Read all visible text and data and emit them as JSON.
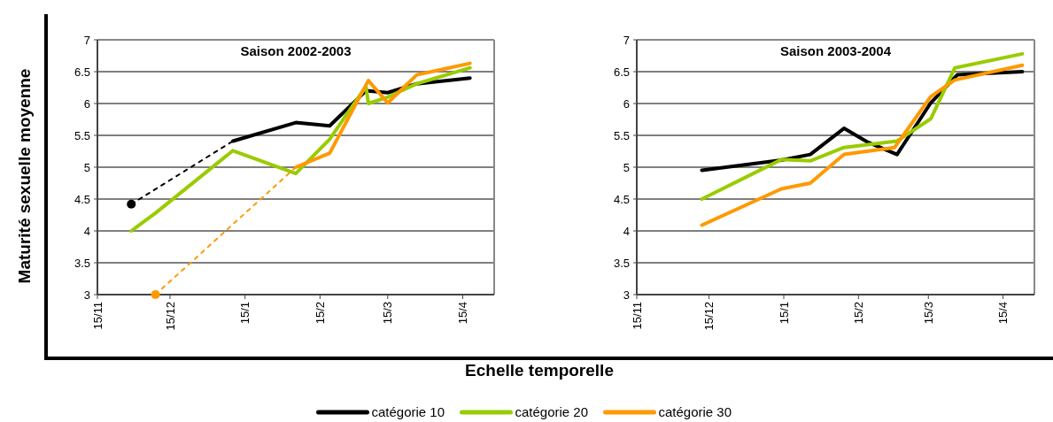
{
  "chart_data": [
    {
      "type": "line",
      "title": "Saison 2002-2003",
      "ylabel": "Maturité sexuelle moyenne",
      "xlabel": "Echelle temporelle",
      "xlim": [
        "2002-11-15",
        "2003-04-28"
      ],
      "xticks": [
        {
          "value": "2002-11-15",
          "label": "15/11"
        },
        {
          "value": "2002-12-15",
          "label": "15/12"
        },
        {
          "value": "2003-01-15",
          "label": "15/1"
        },
        {
          "value": "2003-02-15",
          "label": "15/2"
        },
        {
          "value": "2003-03-15",
          "label": "15/3"
        },
        {
          "value": "2003-04-15",
          "label": "15/4"
        }
      ],
      "ylim": [
        3,
        7
      ],
      "yticks": [
        3,
        3.5,
        4,
        4.5,
        5,
        5.5,
        6,
        6.5,
        7
      ],
      "grid": "y",
      "legend": "bottom",
      "line_style": "solid",
      "marker": "none",
      "series": [
        {
          "name": "catégorie 10",
          "color": "#000000",
          "x": [
            "2003-01-10",
            "2003-02-05",
            "2003-02-19",
            "2003-03-06",
            "2003-03-15",
            "2003-03-27",
            "2003-04-18"
          ],
          "values": [
            5.41,
            5.7,
            5.65,
            6.2,
            6.17,
            6.31,
            6.4
          ]
        },
        {
          "name": "catégorie 20",
          "color": "#99cc00",
          "x": [
            "2002-11-29",
            "2002-12-09",
            "2003-01-10",
            "2003-02-05",
            "2003-02-19",
            "2003-03-06",
            "2003-03-07",
            "2003-03-15",
            "2003-03-27",
            "2003-04-18"
          ],
          "values": [
            4.0,
            4.28,
            5.26,
            4.9,
            5.44,
            6.27,
            6.0,
            6.1,
            6.31,
            6.56
          ]
        },
        {
          "name": "catégorie 30",
          "color": "#ff9900",
          "x": [
            "2003-02-05",
            "2003-02-19",
            "2003-03-07",
            "2003-03-15",
            "2003-03-27",
            "2003-04-18"
          ],
          "values": [
            5.0,
            5.22,
            6.36,
            6.01,
            6.45,
            6.63
          ]
        },
        {
          "color": "#000000",
          "line_style": "dashed",
          "x": [
            "2002-11-29",
            "2003-01-10"
          ],
          "values": [
            4.42,
            5.41
          ]
        },
        {
          "color": "#ff9900",
          "line_style": "dashed",
          "x": [
            "2002-12-09",
            "2003-02-05"
          ],
          "values": [
            3.0,
            5.0
          ]
        },
        {
          "type": "scatter",
          "marker": "circle",
          "color": "#000000",
          "x": [
            "2002-11-29"
          ],
          "values": [
            4.42
          ]
        },
        {
          "type": "scatter",
          "marker": "circle",
          "color": "#ff9900",
          "x": [
            "2002-12-09"
          ],
          "values": [
            3.0
          ]
        }
      ]
    },
    {
      "type": "line",
      "title": "Saison 2003-2004",
      "xlim": [
        "2003-11-15",
        "2004-04-28"
      ],
      "xticks": [
        {
          "value": "2003-11-15",
          "label": "15/11"
        },
        {
          "value": "2003-12-15",
          "label": "15/12"
        },
        {
          "value": "2004-01-15",
          "label": "15/1"
        },
        {
          "value": "2004-02-15",
          "label": "15/2"
        },
        {
          "value": "2004-03-15",
          "label": "15/3"
        },
        {
          "value": "2004-04-15",
          "label": "15/4"
        }
      ],
      "ylim": [
        3,
        7
      ],
      "yticks": [
        3,
        3.5,
        4,
        4.5,
        5,
        5.5,
        6,
        6.5,
        7
      ],
      "grid": "y",
      "line_style": "solid",
      "marker": "none",
      "series": [
        {
          "name": "catégorie 10",
          "color": "#000000",
          "x": [
            "2003-12-12",
            "2004-01-14",
            "2004-01-26",
            "2004-02-09",
            "2004-02-19",
            "2004-03-02",
            "2004-03-16",
            "2004-03-27",
            "2004-04-23"
          ],
          "values": [
            4.95,
            5.11,
            5.2,
            5.61,
            5.39,
            5.2,
            6.01,
            6.45,
            6.5
          ]
        },
        {
          "name": "catégorie 20",
          "color": "#99cc00",
          "x": [
            "2003-12-12",
            "2004-01-14",
            "2004-01-26",
            "2004-02-09",
            "2004-03-02",
            "2004-03-16",
            "2004-03-26",
            "2004-04-23"
          ],
          "values": [
            4.5,
            5.12,
            5.1,
            5.31,
            5.41,
            5.76,
            6.56,
            6.78
          ]
        },
        {
          "name": "catégorie 30",
          "color": "#ff9900",
          "x": [
            "2003-12-12",
            "2004-01-14",
            "2004-01-26",
            "2004-02-09",
            "2004-03-01",
            "2004-03-16",
            "2004-03-26",
            "2004-04-23"
          ],
          "values": [
            4.09,
            4.66,
            4.75,
            5.2,
            5.31,
            6.11,
            6.37,
            6.6
          ]
        }
      ]
    }
  ]
}
